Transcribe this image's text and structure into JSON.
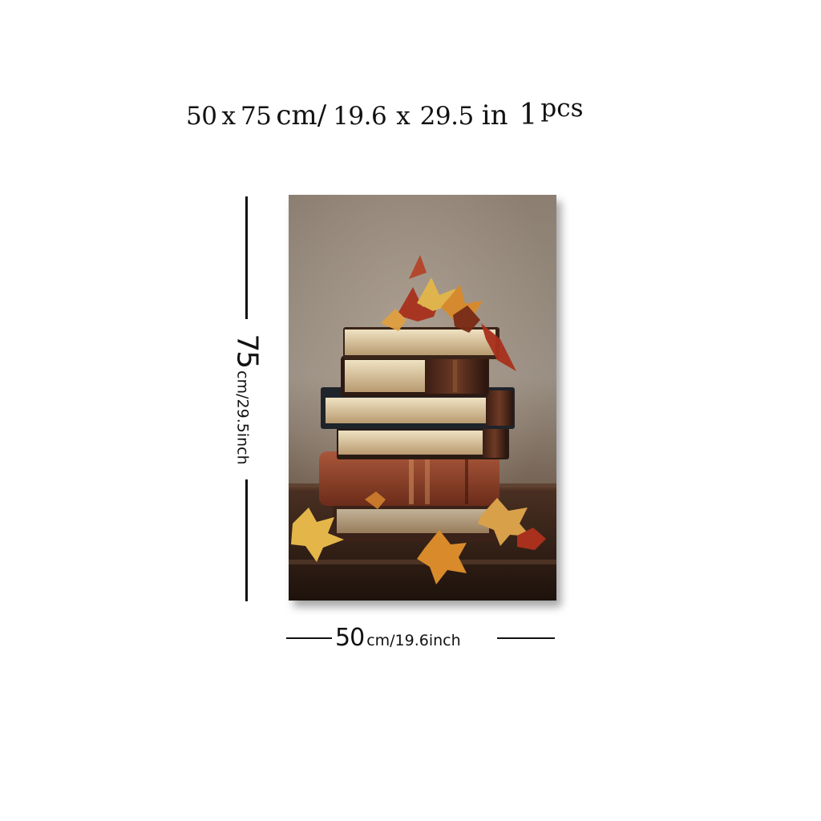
{
  "headline": {
    "cm_width": "50",
    "x_symbol_1": "x",
    "cm_height": "75",
    "cm_unit": "cm",
    "slash": "/",
    "in_width": "19.6",
    "x_symbol_2": "x",
    "in_height": "29.5",
    "in_unit": "in",
    "quantity": "1",
    "quantity_unit": "pcs"
  },
  "height_dimension": {
    "value": "75",
    "unit_text": "cm/29.5inch"
  },
  "width_dimension": {
    "value": "50",
    "unit_text": "cm/19.6inch"
  },
  "artwork": {
    "subject": "still-life-books-autumn-leaves",
    "colors": {
      "background_top": "#8c7f72",
      "background_bottom": "#5a4638",
      "table": "#2e1c14",
      "leaf_red": "#a8301c",
      "leaf_orange": "#d98a2b",
      "leaf_yellow": "#e4b64a",
      "book_brown": "#7a3b22",
      "page_cream": "#e7d8b8"
    }
  }
}
